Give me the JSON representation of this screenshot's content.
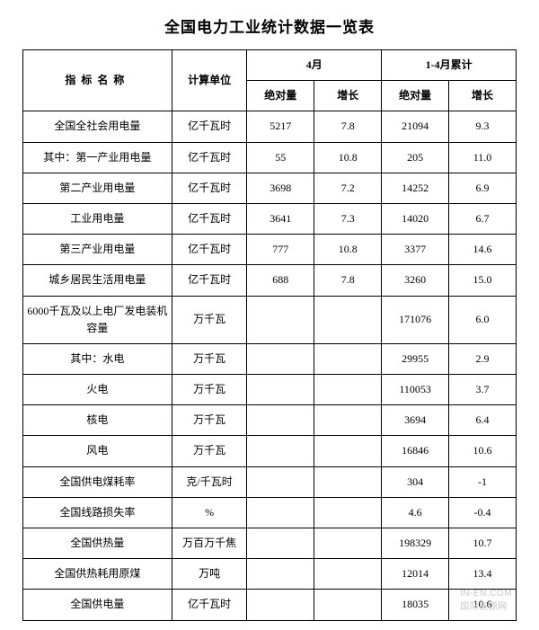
{
  "title": "全国电力工业统计数据一览表",
  "watermark": "IN-EN.COM",
  "watermark_cn": "国际能源网",
  "headers": {
    "indicator": "指标名称",
    "unit": "计算单位",
    "april": "4月",
    "cumulative": "1-4月累计",
    "abs": "绝对量",
    "growth": "增长"
  },
  "columns": [
    "name",
    "unit",
    "apr_abs",
    "apr_growth",
    "cum_abs",
    "cum_growth"
  ],
  "rows": [
    {
      "name": "全国全社会用电量",
      "indent": 0,
      "unit": "亿千瓦时",
      "apr_abs": "5217",
      "apr_growth": "7.8",
      "cum_abs": "21094",
      "cum_growth": "9.3"
    },
    {
      "name": "其中：第一产业用电量",
      "indent": 1,
      "unit": "亿千瓦时",
      "apr_abs": "55",
      "apr_growth": "10.8",
      "cum_abs": "205",
      "cum_growth": "11.0"
    },
    {
      "name": "第二产业用电量",
      "indent": 2,
      "unit": "亿千瓦时",
      "apr_abs": "3698",
      "apr_growth": "7.2",
      "cum_abs": "14252",
      "cum_growth": "6.9"
    },
    {
      "name": "工业用电量",
      "indent": 2,
      "unit": "亿千瓦时",
      "apr_abs": "3641",
      "apr_growth": "7.3",
      "cum_abs": "14020",
      "cum_growth": "6.7"
    },
    {
      "name": "第三产业用电量",
      "indent": 2,
      "unit": "亿千瓦时",
      "apr_abs": "777",
      "apr_growth": "10.8",
      "cum_abs": "3377",
      "cum_growth": "14.6"
    },
    {
      "name": "城乡居民生活用电量",
      "indent": 2,
      "unit": "亿千瓦时",
      "apr_abs": "688",
      "apr_growth": "7.8",
      "cum_abs": "3260",
      "cum_growth": "15.0"
    },
    {
      "name": "6000千瓦及以上电厂发电装机容量",
      "indent": 0,
      "unit": "万千瓦",
      "apr_abs": "",
      "apr_growth": "",
      "cum_abs": "171076",
      "cum_growth": "6.0"
    },
    {
      "name": "其中：水电",
      "indent": 1,
      "unit": "万千瓦",
      "apr_abs": "",
      "apr_growth": "",
      "cum_abs": "29955",
      "cum_growth": "2.9"
    },
    {
      "name": "火电",
      "indent": 2,
      "unit": "万千瓦",
      "apr_abs": "",
      "apr_growth": "",
      "cum_abs": "110053",
      "cum_growth": "3.7"
    },
    {
      "name": "核电",
      "indent": 2,
      "unit": "万千瓦",
      "apr_abs": "",
      "apr_growth": "",
      "cum_abs": "3694",
      "cum_growth": "6.4"
    },
    {
      "name": "风电",
      "indent": 2,
      "unit": "万千瓦",
      "apr_abs": "",
      "apr_growth": "",
      "cum_abs": "16846",
      "cum_growth": "10.6"
    },
    {
      "name": "全国供电煤耗率",
      "indent": 0,
      "unit": "克/千瓦时",
      "apr_abs": "",
      "apr_growth": "",
      "cum_abs": "304",
      "cum_growth": "-1"
    },
    {
      "name": "全国线路损失率",
      "indent": 0,
      "unit": "%",
      "apr_abs": "",
      "apr_growth": "",
      "cum_abs": "4.6",
      "cum_growth": "-0.4"
    },
    {
      "name": "全国供热量",
      "indent": 0,
      "unit": "万百万千焦",
      "apr_abs": "",
      "apr_growth": "",
      "cum_abs": "198329",
      "cum_growth": "10.7"
    },
    {
      "name": "全国供热耗用原煤",
      "indent": 0,
      "unit": "万吨",
      "apr_abs": "",
      "apr_growth": "",
      "cum_abs": "12014",
      "cum_growth": "13.4"
    },
    {
      "name": "全国供电量",
      "indent": 0,
      "unit": "亿千瓦时",
      "apr_abs": "",
      "apr_growth": "",
      "cum_abs": "18035",
      "cum_growth": "10.6"
    }
  ],
  "style": {
    "font_family": "SimSun",
    "title_fontsize": 17,
    "body_fontsize": 12,
    "border_color": "#000000",
    "background": "#ffffff",
    "watermark_color": "#c8c8c8"
  }
}
